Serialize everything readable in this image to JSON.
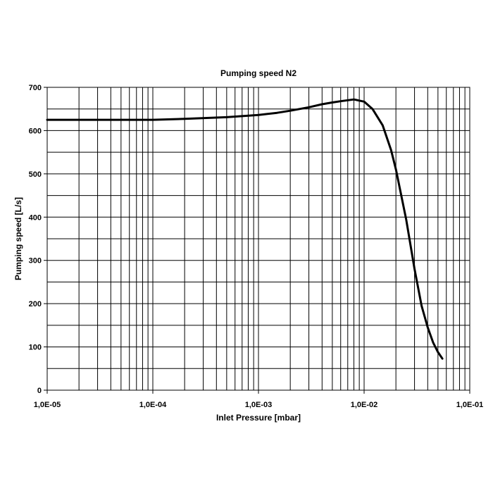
{
  "chart_data": {
    "type": "line",
    "title": "Pumping speed N2",
    "xlabel": "Inlet Pressure [mbar]",
    "ylabel": "Pumping speed [L/s]",
    "x_scale": "log",
    "xlim": [
      1e-05,
      0.1
    ],
    "ylim": [
      0,
      700
    ],
    "grid": true,
    "x_tick_values": [
      1e-05,
      0.0001,
      0.001,
      0.01,
      0.1
    ],
    "x_tick_labels": [
      "1,0E-05",
      "1,0E-04",
      "1,0E-03",
      "1,0E-02",
      "1,0E-01"
    ],
    "y_ticks": [
      0,
      100,
      200,
      300,
      400,
      500,
      600,
      700
    ],
    "y_tick_labels": [
      "0",
      "100",
      "200",
      "300",
      "400",
      "500",
      "600",
      "700"
    ],
    "series": [
      {
        "color": "#000000",
        "x": [
          1e-05,
          3e-05,
          0.0001,
          0.0002,
          0.0005,
          0.001,
          0.0015,
          0.002,
          0.003,
          0.004,
          0.005,
          0.006,
          0.008,
          0.01,
          0.012,
          0.015,
          0.018,
          0.02,
          0.025,
          0.03,
          0.035,
          0.04,
          0.045,
          0.05,
          0.055
        ],
        "y": [
          625,
          625,
          625,
          627,
          631,
          636,
          641,
          646,
          654,
          661,
          665,
          668,
          672,
          667,
          650,
          612,
          555,
          510,
          395,
          280,
          195,
          145,
          110,
          88,
          73
        ]
      }
    ]
  }
}
